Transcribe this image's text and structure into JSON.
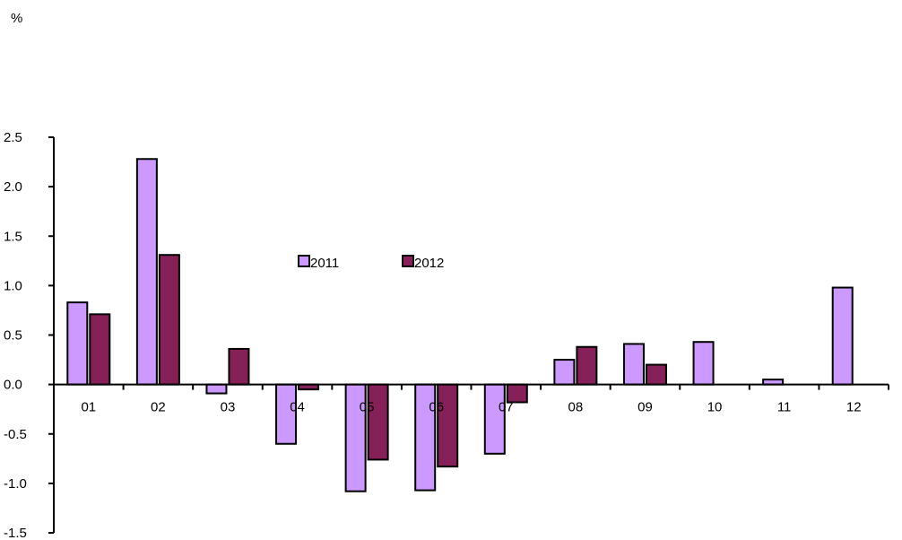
{
  "chart_data": {
    "type": "bar",
    "ylabel": "%",
    "categories": [
      "01",
      "02",
      "03",
      "04",
      "05",
      "06",
      "07",
      "08",
      "09",
      "10",
      "11",
      "12"
    ],
    "series": [
      {
        "name": "2011",
        "color": "#cc99ff",
        "values": [
          0.83,
          2.28,
          -0.09,
          -0.6,
          -1.08,
          -1.07,
          -0.7,
          0.25,
          0.41,
          0.43,
          0.05,
          0.98
        ]
      },
      {
        "name": "2012",
        "color": "#862058",
        "values": [
          0.71,
          1.31,
          0.36,
          -0.05,
          -0.76,
          -0.83,
          -0.18,
          0.38,
          0.2,
          null,
          null,
          null
        ]
      }
    ],
    "ylim": [
      -1.5,
      2.5
    ],
    "yticks": [
      2.5,
      2.0,
      1.5,
      1.0,
      0.5,
      0.0,
      -0.5,
      -1.0,
      -1.5
    ],
    "ytick_labels": [
      "2.5",
      "2.0",
      "1.5",
      "1.0",
      "0.5",
      "0.0",
      "-0.5",
      "-1.0",
      "-1.5"
    ],
    "grid": false,
    "legend": "center"
  }
}
